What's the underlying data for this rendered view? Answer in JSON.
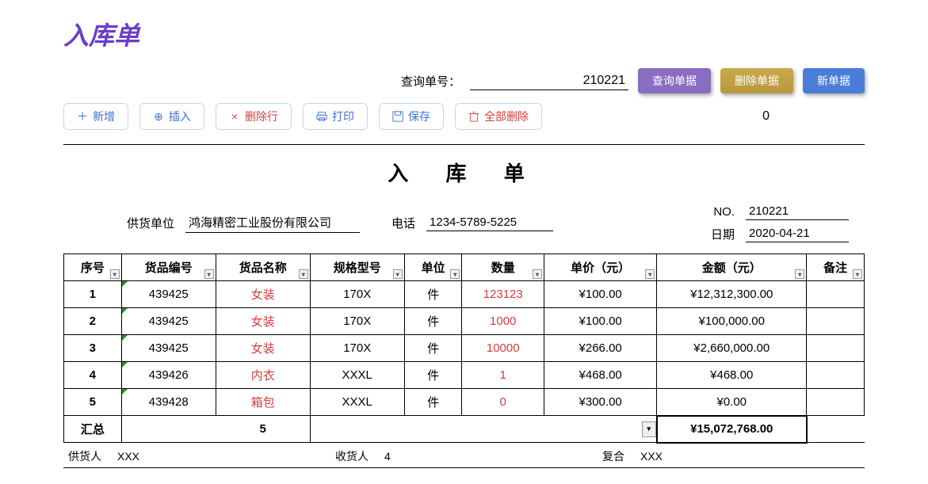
{
  "page_title": "入库单",
  "search": {
    "label": "查询单号：",
    "value": "210221"
  },
  "buttons": {
    "query": "查询单据",
    "delete": "删除单据",
    "new": "新单据"
  },
  "toolbar": {
    "add": "新增",
    "insert": "插入",
    "delrow": "删除行",
    "print": "打印",
    "save": "保存",
    "delall": "全部删除"
  },
  "zero_label": "0",
  "doc_title": "入 库 单",
  "supplier_label": "供货单位",
  "supplier_value": "鸿海精密工业股份有限公司",
  "phone_label": "电话",
  "phone_value": "1234-5789-5225",
  "no_label": "NO.",
  "no_value": "210221",
  "date_label": "日期",
  "date_value": "2020-04-21",
  "columns": [
    "序号",
    "货品编号",
    "货品名称",
    "规格型号",
    "单位",
    "数量",
    "单价（元）",
    "金额（元）",
    "备注"
  ],
  "rows": [
    {
      "seq": "1",
      "code": "439425",
      "name": "女装",
      "spec": "170X",
      "unit": "件",
      "qty": "123123",
      "price": "¥100.00",
      "amount": "¥12,312,300.00",
      "remark": ""
    },
    {
      "seq": "2",
      "code": "439425",
      "name": "女装",
      "spec": "170X",
      "unit": "件",
      "qty": "1000",
      "price": "¥100.00",
      "amount": "¥100,000.00",
      "remark": ""
    },
    {
      "seq": "3",
      "code": "439425",
      "name": "女装",
      "spec": "170X",
      "unit": "件",
      "qty": "10000",
      "price": "¥266.00",
      "amount": "¥2,660,000.00",
      "remark": ""
    },
    {
      "seq": "4",
      "code": "439426",
      "name": "内衣",
      "spec": "XXXL",
      "unit": "件",
      "qty": "1",
      "price": "¥468.00",
      "amount": "¥468.00",
      "remark": ""
    },
    {
      "seq": "5",
      "code": "439428",
      "name": "箱包",
      "spec": "XXXL",
      "unit": "件",
      "qty": "0",
      "price": "¥300.00",
      "amount": "¥0.00",
      "remark": ""
    }
  ],
  "summary": {
    "label": "汇总",
    "count": "5",
    "total": "¥15,072,768.00"
  },
  "footer": {
    "supplier_person_label": "供货人",
    "supplier_person": "XXX",
    "receiver_label": "收货人",
    "receiver": "4",
    "checker_label": "复合",
    "checker": "XXX"
  }
}
